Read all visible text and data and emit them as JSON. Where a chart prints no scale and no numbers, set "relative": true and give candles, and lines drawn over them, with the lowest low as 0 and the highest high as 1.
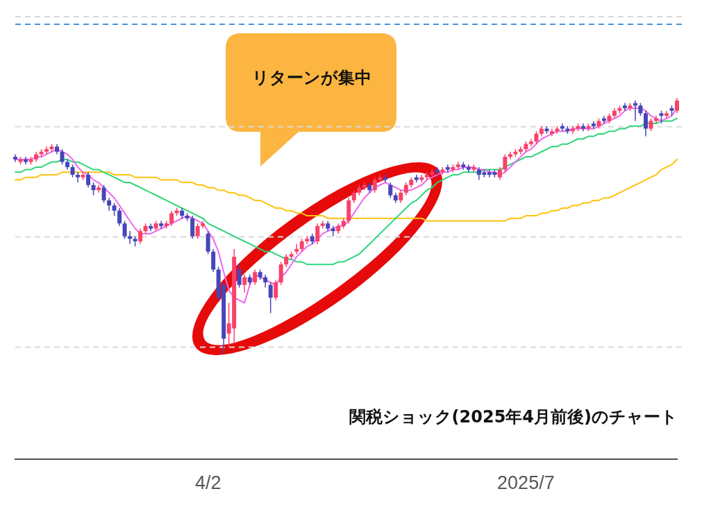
{
  "chart_data": {
    "type": "candlestick",
    "relative": true,
    "title": "関税ショック(2025年4月前後)のチャート",
    "annotations": [
      "リターンが集中"
    ],
    "categories": [
      null,
      null,
      null,
      null,
      null,
      null,
      null,
      null,
      null,
      null,
      null,
      null,
      null,
      null,
      null,
      null,
      null,
      null,
      null,
      null,
      null,
      null,
      null,
      null,
      null,
      null,
      null,
      null,
      null,
      null,
      null,
      null,
      null,
      null,
      null,
      null,
      null,
      "4/2",
      null,
      null,
      null,
      null,
      null,
      null,
      null,
      null,
      null,
      null,
      null,
      null,
      null,
      null,
      null,
      null,
      null,
      null,
      null,
      null,
      null,
      null,
      null,
      null,
      null,
      null,
      null,
      null,
      null,
      null,
      null,
      null,
      null,
      null,
      null,
      null,
      null,
      null,
      null,
      null,
      null,
      null,
      null,
      null,
      null,
      null,
      null,
      null,
      null,
      null,
      null,
      null,
      null,
      null,
      null,
      null,
      null,
      null,
      null,
      null,
      "2025/7",
      null,
      null,
      null,
      null,
      null,
      null,
      null,
      null,
      null,
      null,
      null,
      null,
      null,
      null,
      null,
      null,
      null,
      null,
      null,
      null,
      null,
      null,
      null,
      null,
      null,
      null,
      null,
      null,
      null
    ],
    "ohlc": [
      [
        0.77,
        0.78,
        0.75,
        0.76
      ],
      [
        0.75,
        0.77,
        0.74,
        0.76
      ],
      [
        0.76,
        0.77,
        0.74,
        0.75
      ],
      [
        0.75,
        0.77,
        0.74,
        0.76
      ],
      [
        0.76,
        0.79,
        0.75,
        0.78
      ],
      [
        0.78,
        0.8,
        0.77,
        0.79
      ],
      [
        0.79,
        0.81,
        0.78,
        0.8
      ],
      [
        0.8,
        0.82,
        0.79,
        0.81
      ],
      [
        0.81,
        0.82,
        0.78,
        0.79
      ],
      [
        0.79,
        0.8,
        0.74,
        0.75
      ],
      [
        0.75,
        0.76,
        0.72,
        0.73
      ],
      [
        0.73,
        0.74,
        0.69,
        0.7
      ],
      [
        0.7,
        0.71,
        0.67,
        0.69
      ],
      [
        0.69,
        0.71,
        0.68,
        0.7
      ],
      [
        0.7,
        0.71,
        0.65,
        0.66
      ],
      [
        0.66,
        0.67,
        0.62,
        0.64
      ],
      [
        0.64,
        0.66,
        0.63,
        0.65
      ],
      [
        0.65,
        0.66,
        0.59,
        0.6
      ],
      [
        0.6,
        0.61,
        0.56,
        0.58
      ],
      [
        0.58,
        0.59,
        0.54,
        0.56
      ],
      [
        0.56,
        0.57,
        0.5,
        0.51
      ],
      [
        0.51,
        0.52,
        0.45,
        0.46
      ],
      [
        0.46,
        0.48,
        0.43,
        0.45
      ],
      [
        0.45,
        0.46,
        0.42,
        0.44
      ],
      [
        0.44,
        0.49,
        0.43,
        0.48
      ],
      [
        0.48,
        0.51,
        0.47,
        0.5
      ],
      [
        0.5,
        0.51,
        0.48,
        0.49
      ],
      [
        0.49,
        0.52,
        0.48,
        0.51
      ],
      [
        0.51,
        0.52,
        0.49,
        0.5
      ],
      [
        0.5,
        0.52,
        0.49,
        0.51
      ],
      [
        0.51,
        0.56,
        0.5,
        0.55
      ],
      [
        0.55,
        0.57,
        0.54,
        0.56
      ],
      [
        0.56,
        0.57,
        0.53,
        0.54
      ],
      [
        0.54,
        0.55,
        0.52,
        0.53
      ],
      [
        0.53,
        0.54,
        0.45,
        0.46
      ],
      [
        0.46,
        0.51,
        0.45,
        0.5
      ],
      [
        0.5,
        0.52,
        0.49,
        0.51
      ],
      [
        0.47,
        0.48,
        0.39,
        0.4
      ],
      [
        0.4,
        0.41,
        0.32,
        0.33
      ],
      [
        0.33,
        0.34,
        0.21,
        0.22
      ],
      [
        0.27,
        0.28,
        0.0,
        0.06
      ],
      [
        0.08,
        0.2,
        0.03,
        0.12
      ],
      [
        0.1,
        0.41,
        0.04,
        0.38
      ],
      [
        0.33,
        0.35,
        0.26,
        0.27
      ],
      [
        0.27,
        0.31,
        0.24,
        0.3
      ],
      [
        0.3,
        0.31,
        0.27,
        0.28
      ],
      [
        0.28,
        0.33,
        0.27,
        0.32
      ],
      [
        0.32,
        0.33,
        0.29,
        0.3
      ],
      [
        0.3,
        0.31,
        0.26,
        0.28
      ],
      [
        0.27,
        0.28,
        0.16,
        0.22
      ],
      [
        0.22,
        0.29,
        0.21,
        0.28
      ],
      [
        0.28,
        0.36,
        0.27,
        0.35
      ],
      [
        0.35,
        0.39,
        0.34,
        0.38
      ],
      [
        0.38,
        0.4,
        0.37,
        0.39
      ],
      [
        0.4,
        0.43,
        0.39,
        0.41
      ],
      [
        0.41,
        0.45,
        0.4,
        0.44
      ],
      [
        0.44,
        0.46,
        0.43,
        0.45
      ],
      [
        0.46,
        0.47,
        0.43,
        0.44
      ],
      [
        0.44,
        0.51,
        0.43,
        0.5
      ],
      [
        0.5,
        0.52,
        0.49,
        0.51
      ],
      [
        0.51,
        0.52,
        0.48,
        0.49
      ],
      [
        0.49,
        0.5,
        0.46,
        0.48
      ],
      [
        0.48,
        0.51,
        0.47,
        0.5
      ],
      [
        0.5,
        0.53,
        0.49,
        0.52
      ],
      [
        0.52,
        0.61,
        0.51,
        0.6
      ],
      [
        0.6,
        0.64,
        0.59,
        0.63
      ],
      [
        0.63,
        0.66,
        0.62,
        0.65
      ],
      [
        0.65,
        0.67,
        0.64,
        0.66
      ],
      [
        0.66,
        0.67,
        0.63,
        0.64
      ],
      [
        0.64,
        0.69,
        0.63,
        0.68
      ],
      [
        0.68,
        0.7,
        0.67,
        0.69
      ],
      [
        0.69,
        0.7,
        0.67,
        0.68
      ],
      [
        0.66,
        0.67,
        0.61,
        0.62
      ],
      [
        0.62,
        0.63,
        0.59,
        0.6
      ],
      [
        0.6,
        0.64,
        0.59,
        0.63
      ],
      [
        0.63,
        0.67,
        0.62,
        0.66
      ],
      [
        0.66,
        0.69,
        0.65,
        0.68
      ],
      [
        0.69,
        0.7,
        0.67,
        0.68
      ],
      [
        0.68,
        0.7,
        0.67,
        0.69
      ],
      [
        0.69,
        0.71,
        0.68,
        0.7
      ],
      [
        0.7,
        0.72,
        0.69,
        0.71
      ],
      [
        0.72,
        0.73,
        0.7,
        0.71
      ],
      [
        0.71,
        0.73,
        0.7,
        0.72
      ],
      [
        0.73,
        0.74,
        0.71,
        0.72
      ],
      [
        0.72,
        0.74,
        0.71,
        0.73
      ],
      [
        0.73,
        0.75,
        0.72,
        0.74
      ],
      [
        0.74,
        0.75,
        0.72,
        0.73
      ],
      [
        0.73,
        0.74,
        0.71,
        0.72
      ],
      [
        0.72,
        0.74,
        0.71,
        0.73
      ],
      [
        0.72,
        0.73,
        0.68,
        0.7
      ],
      [
        0.71,
        0.72,
        0.69,
        0.7
      ],
      [
        0.71,
        0.72,
        0.69,
        0.7
      ],
      [
        0.71,
        0.72,
        0.69,
        0.7
      ],
      [
        0.69,
        0.73,
        0.68,
        0.72
      ],
      [
        0.72,
        0.78,
        0.71,
        0.77
      ],
      [
        0.77,
        0.79,
        0.76,
        0.78
      ],
      [
        0.78,
        0.8,
        0.77,
        0.79
      ],
      [
        0.79,
        0.81,
        0.78,
        0.8
      ],
      [
        0.8,
        0.83,
        0.79,
        0.82
      ],
      [
        0.82,
        0.84,
        0.81,
        0.83
      ],
      [
        0.83,
        0.87,
        0.82,
        0.86
      ],
      [
        0.86,
        0.89,
        0.85,
        0.88
      ],
      [
        0.88,
        0.89,
        0.86,
        0.87
      ],
      [
        0.86,
        0.88,
        0.85,
        0.87
      ],
      [
        0.87,
        0.89,
        0.86,
        0.88
      ],
      [
        0.89,
        0.9,
        0.87,
        0.88
      ],
      [
        0.88,
        0.89,
        0.86,
        0.87
      ],
      [
        0.87,
        0.89,
        0.86,
        0.88
      ],
      [
        0.88,
        0.9,
        0.87,
        0.89
      ],
      [
        0.89,
        0.9,
        0.87,
        0.88
      ],
      [
        0.88,
        0.9,
        0.87,
        0.89
      ],
      [
        0.9,
        0.91,
        0.88,
        0.89
      ],
      [
        0.89,
        0.92,
        0.88,
        0.91
      ],
      [
        0.92,
        0.93,
        0.9,
        0.91
      ],
      [
        0.91,
        0.94,
        0.9,
        0.93
      ],
      [
        0.93,
        0.96,
        0.92,
        0.95
      ],
      [
        0.95,
        0.97,
        0.94,
        0.96
      ],
      [
        0.97,
        0.98,
        0.95,
        0.96
      ],
      [
        0.96,
        0.98,
        0.95,
        0.97
      ],
      [
        0.98,
        0.99,
        0.91,
        0.97
      ],
      [
        0.97,
        0.98,
        0.93,
        0.94
      ],
      [
        0.94,
        0.95,
        0.85,
        0.88
      ],
      [
        0.88,
        0.92,
        0.87,
        0.91
      ],
      [
        0.91,
        0.93,
        0.9,
        0.92
      ],
      [
        0.94,
        0.95,
        0.9,
        0.93
      ],
      [
        0.93,
        0.95,
        0.92,
        0.94
      ],
      [
        0.96,
        0.97,
        0.93,
        0.95
      ],
      [
        0.95,
        1.0,
        0.94,
        0.99
      ]
    ],
    "colors": [
      "#4646b8",
      "#f7426a",
      "#4646b8",
      "#f7426a",
      "#f7426a",
      "#f7426a",
      "#f7426a",
      "#f7426a",
      "#4646b8",
      "#4646b8",
      "#4646b8",
      "#4646b8",
      "#4646b8",
      "#f7426a",
      "#4646b8",
      "#4646b8",
      "#f7426a",
      "#4646b8",
      "#4646b8",
      "#4646b8",
      "#4646b8",
      "#4646b8",
      "#4646b8",
      "#4646b8",
      "#f7426a",
      "#f7426a",
      "#4646b8",
      "#f7426a",
      "#4646b8",
      "#f7426a",
      "#f7426a",
      "#f7426a",
      "#4646b8",
      "#4646b8",
      "#4646b8",
      "#f7426a",
      "#f7426a",
      "#4646b8",
      "#4646b8",
      "#4646b8",
      "#4646b8",
      "#f7426a",
      "#f7426a",
      "#4646b8",
      "#f7426a",
      "#4646b8",
      "#f7426a",
      "#4646b8",
      "#4646b8",
      "#4646b8",
      "#f7426a",
      "#f7426a",
      "#f7426a",
      "#f7426a",
      "#f7426a",
      "#f7426a",
      "#f7426a",
      "#4646b8",
      "#f7426a",
      "#f7426a",
      "#4646b8",
      "#4646b8",
      "#f7426a",
      "#f7426a",
      "#f7426a",
      "#f7426a",
      "#f7426a",
      "#f7426a",
      "#4646b8",
      "#f7426a",
      "#f7426a",
      "#4646b8",
      "#4646b8",
      "#4646b8",
      "#f7426a",
      "#f7426a",
      "#f7426a",
      "#4646b8",
      "#f7426a",
      "#f7426a",
      "#f7426a",
      "#4646b8",
      "#f7426a",
      "#4646b8",
      "#f7426a",
      "#f7426a",
      "#4646b8",
      "#4646b8",
      "#f7426a",
      "#4646b8",
      "#4646b8",
      "#4646b8",
      "#4646b8",
      "#f7426a",
      "#f7426a",
      "#f7426a",
      "#f7426a",
      "#f7426a",
      "#f7426a",
      "#f7426a",
      "#f7426a",
      "#f7426a",
      "#4646b8",
      "#f7426a",
      "#f7426a",
      "#4646b8",
      "#4646b8",
      "#f7426a",
      "#f7426a",
      "#4646b8",
      "#f7426a",
      "#4646b8",
      "#f7426a",
      "#4646b8",
      "#f7426a",
      "#f7426a",
      "#f7426a",
      "#4646b8",
      "#f7426a",
      "#4646b8",
      "#4646b8",
      "#4646b8",
      "#f7426a",
      "#f7426a",
      "#4646b8",
      "#f7426a",
      "#4646b8",
      "#f7426a"
    ],
    "series": [
      {
        "type": "line",
        "color": "#ee66ee",
        "values": [
          0.76,
          0.76,
          0.76,
          0.76,
          0.77,
          0.77,
          0.78,
          0.79,
          0.8,
          0.79,
          0.78,
          0.76,
          0.73,
          0.71,
          0.7,
          0.68,
          0.67,
          0.65,
          0.63,
          0.61,
          0.58,
          0.55,
          0.52,
          0.49,
          0.47,
          0.47,
          0.47,
          0.48,
          0.49,
          0.5,
          0.51,
          0.52,
          0.53,
          0.54,
          0.53,
          0.52,
          0.51,
          0.48,
          0.45,
          0.4,
          0.32,
          0.25,
          0.22,
          0.21,
          0.2,
          0.27,
          0.31,
          0.3,
          0.29,
          0.28,
          0.27,
          0.3,
          0.32,
          0.35,
          0.38,
          0.4,
          0.42,
          0.43,
          0.45,
          0.47,
          0.48,
          0.49,
          0.5,
          0.5,
          0.52,
          0.55,
          0.58,
          0.61,
          0.63,
          0.65,
          0.66,
          0.67,
          0.66,
          0.65,
          0.64,
          0.64,
          0.64,
          0.65,
          0.66,
          0.68,
          0.69,
          0.7,
          0.71,
          0.71,
          0.72,
          0.72,
          0.73,
          0.73,
          0.73,
          0.72,
          0.72,
          0.71,
          0.71,
          0.7,
          0.71,
          0.73,
          0.75,
          0.77,
          0.79,
          0.8,
          0.82,
          0.84,
          0.85,
          0.86,
          0.87,
          0.87,
          0.87,
          0.88,
          0.88,
          0.88,
          0.88,
          0.88,
          0.89,
          0.9,
          0.91,
          0.92,
          0.93,
          0.95,
          0.96,
          0.96,
          0.96,
          0.95,
          0.93,
          0.92,
          0.91,
          0.92,
          0.93,
          0.96
        ]
      },
      {
        "type": "line",
        "color": "#2ed47a",
        "values": [
          0.71,
          0.71,
          0.72,
          0.72,
          0.73,
          0.73,
          0.74,
          0.75,
          0.75,
          0.76,
          0.76,
          0.75,
          0.75,
          0.74,
          0.73,
          0.72,
          0.72,
          0.71,
          0.7,
          0.69,
          0.68,
          0.67,
          0.67,
          0.66,
          0.65,
          0.64,
          0.63,
          0.62,
          0.61,
          0.6,
          0.59,
          0.58,
          0.57,
          0.56,
          0.55,
          0.54,
          0.53,
          0.51,
          0.5,
          0.49,
          0.48,
          0.47,
          0.46,
          0.45,
          0.44,
          0.43,
          0.42,
          0.41,
          0.4,
          0.4,
          0.39,
          0.38,
          0.37,
          0.37,
          0.36,
          0.36,
          0.35,
          0.35,
          0.35,
          0.35,
          0.35,
          0.35,
          0.36,
          0.36,
          0.37,
          0.38,
          0.39,
          0.41,
          0.43,
          0.45,
          0.47,
          0.49,
          0.51,
          0.53,
          0.55,
          0.57,
          0.59,
          0.6,
          0.62,
          0.64,
          0.65,
          0.67,
          0.68,
          0.69,
          0.7,
          0.7,
          0.71,
          0.71,
          0.71,
          0.71,
          0.72,
          0.72,
          0.72,
          0.72,
          0.73,
          0.74,
          0.75,
          0.76,
          0.77,
          0.77,
          0.78,
          0.79,
          0.8,
          0.81,
          0.81,
          0.82,
          0.82,
          0.83,
          0.84,
          0.84,
          0.85,
          0.85,
          0.86,
          0.86,
          0.87,
          0.87,
          0.88,
          0.88,
          0.89,
          0.89,
          0.89,
          0.9,
          0.9,
          0.9,
          0.91,
          0.91,
          0.91,
          0.92
        ]
      },
      {
        "type": "line",
        "color": "#ffc20e",
        "values": [
          0.68,
          0.68,
          0.69,
          0.69,
          0.69,
          0.7,
          0.7,
          0.7,
          0.7,
          0.71,
          0.71,
          0.71,
          0.71,
          0.71,
          0.71,
          0.71,
          0.71,
          0.71,
          0.71,
          0.7,
          0.7,
          0.7,
          0.7,
          0.69,
          0.69,
          0.69,
          0.69,
          0.69,
          0.68,
          0.68,
          0.68,
          0.68,
          0.67,
          0.67,
          0.67,
          0.66,
          0.66,
          0.65,
          0.65,
          0.64,
          0.64,
          0.63,
          0.63,
          0.62,
          0.62,
          0.61,
          0.6,
          0.6,
          0.59,
          0.58,
          0.57,
          0.57,
          0.56,
          0.56,
          0.55,
          0.55,
          0.54,
          0.54,
          0.54,
          0.54,
          0.53,
          0.53,
          0.53,
          0.53,
          0.53,
          0.53,
          0.53,
          0.53,
          0.53,
          0.53,
          0.53,
          0.53,
          0.53,
          0.53,
          0.53,
          0.53,
          0.53,
          0.53,
          0.53,
          0.52,
          0.52,
          0.52,
          0.52,
          0.52,
          0.52,
          0.52,
          0.52,
          0.52,
          0.52,
          0.52,
          0.52,
          0.52,
          0.52,
          0.52,
          0.52,
          0.53,
          0.53,
          0.53,
          0.54,
          0.54,
          0.54,
          0.55,
          0.55,
          0.56,
          0.56,
          0.57,
          0.57,
          0.58,
          0.58,
          0.59,
          0.59,
          0.6,
          0.6,
          0.61,
          0.61,
          0.62,
          0.63,
          0.64,
          0.65,
          0.66,
          0.67,
          0.68,
          0.69,
          0.7,
          0.72,
          0.73,
          0.74,
          0.76
        ]
      }
    ],
    "ref_lines": [
      {
        "axis": "y",
        "value": 1.32,
        "color": "#d9d9d9",
        "line_style": "dashed"
      },
      {
        "axis": "y",
        "value": 1.29,
        "color": "#4a90d9",
        "line_style": "dashed"
      },
      {
        "axis": "y",
        "value": 0.89,
        "color": "#d9d9d9",
        "line_style": "dashed"
      },
      {
        "axis": "y",
        "value": 0.46,
        "color": "#d9d9d9",
        "line_style": "dashed"
      },
      {
        "axis": "y",
        "value": 0.03,
        "color": "#d9d9d9",
        "line_style": "dashed"
      }
    ]
  }
}
